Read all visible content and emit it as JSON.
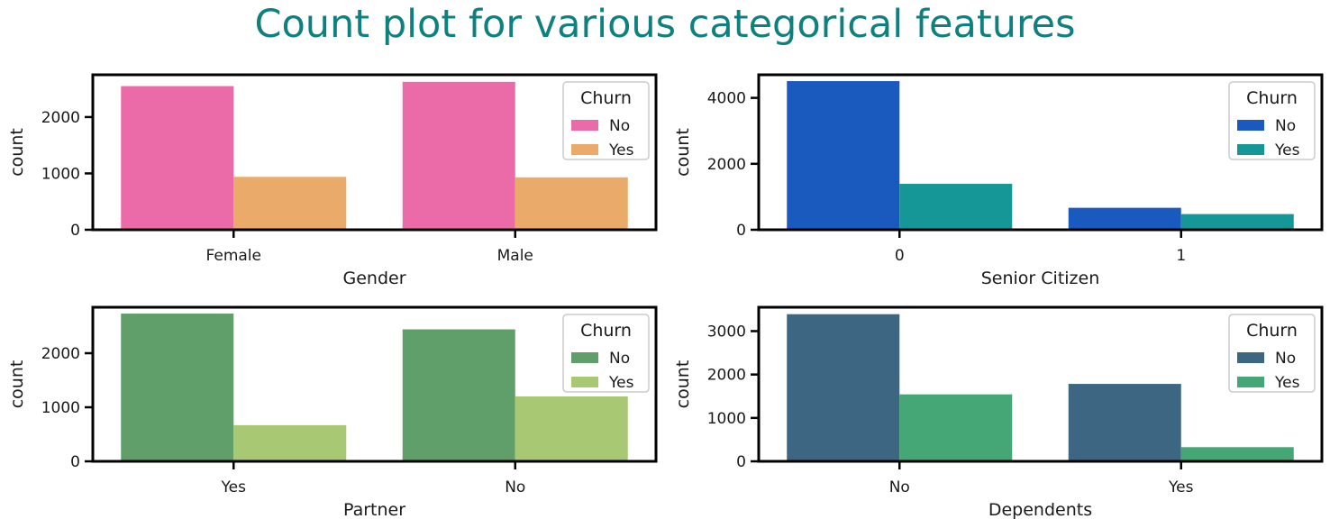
{
  "page_title": "Count plot for various categorical features",
  "chart_data": [
    {
      "type": "bar",
      "categories": [
        "Female",
        "Male"
      ],
      "xlabel": "Gender",
      "ylabel": "count",
      "ylim": [
        0,
        2750
      ],
      "yticks": [
        0,
        1000,
        2000
      ],
      "legend": {
        "title": "Churn",
        "placement": "top-right"
      },
      "series": [
        {
          "name": "No",
          "color": "#eb6ba9",
          "values": [
            2549,
            2625
          ]
        },
        {
          "name": "Yes",
          "color": "#eaaa6a",
          "values": [
            939,
            930
          ]
        }
      ]
    },
    {
      "type": "bar",
      "categories": [
        "0",
        "1"
      ],
      "xlabel": "Senior Citizen",
      "ylabel": "count",
      "ylim": [
        0,
        4700
      ],
      "yticks": [
        0,
        2000,
        4000
      ],
      "legend": {
        "title": "Churn",
        "placement": "top-right"
      },
      "series": [
        {
          "name": "No",
          "color": "#1a5abf",
          "values": [
            4508,
            666
          ]
        },
        {
          "name": "Yes",
          "color": "#159797",
          "values": [
            1393,
            476
          ]
        }
      ]
    },
    {
      "type": "bar",
      "categories": [
        "Yes",
        "No"
      ],
      "xlabel": "Partner",
      "ylabel": "count",
      "ylim": [
        0,
        2850
      ],
      "yticks": [
        0,
        1000,
        2000
      ],
      "legend": {
        "title": "Churn",
        "placement": "top-right"
      },
      "series": [
        {
          "name": "No",
          "color": "#609e6a",
          "values": [
            2733,
            2441
          ]
        },
        {
          "name": "Yes",
          "color": "#a8c873",
          "values": [
            669,
            1200
          ]
        }
      ]
    },
    {
      "type": "bar",
      "categories": [
        "No",
        "Yes"
      ],
      "xlabel": "Dependents",
      "ylabel": "count",
      "ylim": [
        0,
        3550
      ],
      "yticks": [
        0,
        1000,
        2000,
        3000
      ],
      "legend": {
        "title": "Churn",
        "placement": "top-right"
      },
      "series": [
        {
          "name": "No",
          "color": "#3c6682",
          "values": [
            3390,
            1784
          ]
        },
        {
          "name": "Yes",
          "color": "#45a776",
          "values": [
            1543,
            326
          ]
        }
      ]
    }
  ]
}
